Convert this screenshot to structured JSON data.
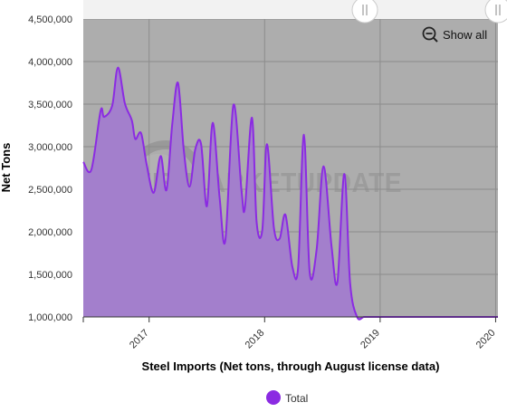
{
  "chart_data": {
    "type": "area",
    "xlabel": "Steel Imports (Net tons, through August license data)",
    "ylabel": "Net Tons",
    "ylim": [
      1000000,
      4500000
    ],
    "y_ticks": [
      1000000,
      1500000,
      2000000,
      2500000,
      3000000,
      3500000,
      4000000,
      4500000
    ],
    "y_tick_labels": [
      "1,000,000",
      "1,500,000",
      "2,000,000",
      "2,500,000",
      "3,000,000",
      "3,500,000",
      "4,000,000",
      "4,500,000"
    ],
    "x_ticks": [
      2017,
      2018,
      2019,
      2020
    ],
    "x_tick_labels": [
      "2017",
      "2018",
      "2019",
      "2020"
    ],
    "xlim": [
      2016.43,
      2020.02
    ],
    "grid": true,
    "legend_position": "bottom",
    "series": [
      {
        "name": "Total",
        "color": "#8b2be2",
        "fill": "#a37fcc",
        "x": [
          2016.43,
          2016.5,
          2016.58,
          2016.61,
          2016.68,
          2016.73,
          2016.79,
          2016.85,
          2016.88,
          2016.93,
          2016.98,
          2017.04,
          2017.1,
          2017.15,
          2017.2,
          2017.25,
          2017.3,
          2017.35,
          2017.4,
          2017.45,
          2017.5,
          2017.55,
          2017.61,
          2017.66,
          2017.73,
          2017.8,
          2017.83,
          2017.89,
          2017.93,
          2017.98,
          2018.02,
          2018.08,
          2018.13,
          2018.18,
          2018.24,
          2018.29,
          2018.34,
          2018.39,
          2018.45,
          2018.51,
          2018.58,
          2018.63,
          2018.69,
          2018.74,
          2018.8,
          2018.86,
          2018.92,
          2018.98,
          2019.04,
          2019.1,
          2019.16,
          2019.21,
          2019.26,
          2019.32,
          2019.38,
          2019.43,
          2019.49,
          2019.54,
          2019.59,
          2019.63,
          2019.7,
          2019.76,
          2019.81,
          2019.86,
          2019.91,
          2019.96,
          2020.02
        ],
        "values": [
          2820000,
          2730000,
          3420000,
          3350000,
          3480000,
          3930000,
          3510000,
          3310000,
          3090000,
          3160000,
          2780000,
          2460000,
          2890000,
          2490000,
          3260000,
          3750000,
          2960000,
          2530000,
          2970000,
          3030000,
          2300000,
          3280000,
          2410000,
          1900000,
          3490000,
          2480000,
          2290000,
          3340000,
          2120000,
          2020000,
          3030000,
          2050000,
          1920000,
          2200000,
          1590000,
          1580000,
          3140000,
          1520000,
          1790000,
          2770000,
          1820000,
          1410000,
          2680000,
          1400000,
          1000000,
          1000000,
          1000000,
          1000000,
          1000000,
          1000000,
          1000000,
          1000000,
          1000000,
          1000000,
          1000000,
          1000000,
          1000000,
          1000000,
          1000000,
          1000000,
          1000000,
          1000000,
          1000000,
          1000000,
          1000000,
          1000000,
          1000000
        ]
      }
    ]
  },
  "ui": {
    "show_all_label": "Show all",
    "legend_label": "Total",
    "watermark_text": "STEELMARKETUPDATE"
  }
}
